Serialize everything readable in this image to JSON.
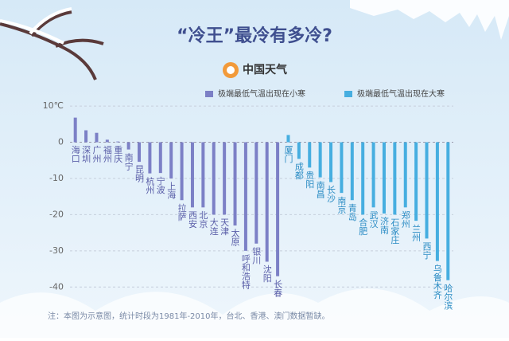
{
  "title": "“冷王”最冷有多冷?",
  "logo": "中国天气",
  "note": "注：本图为示意图，统计时段为1981年-2010年，台北、香港、澳门数据暂缺。",
  "chart_data": {
    "type": "bar",
    "categories": [
      "海口",
      "深圳",
      "广州",
      "福州",
      "重庆",
      "南宁",
      "昆明",
      "杭州",
      "宁波",
      "上海",
      "拉萨",
      "西安",
      "北京",
      "大连",
      "天津",
      "太原",
      "呼和浩特",
      "银川",
      "沈阳",
      "长春",
      "厦门",
      "成都",
      "贵阳",
      "南昌",
      "长沙",
      "南京",
      "青岛",
      "合肥",
      "武汉",
      "济南",
      "石家庄",
      "郑州",
      "兰州",
      "西宁",
      "乌鲁木齐",
      "哈尔滨"
    ],
    "series": [
      {
        "name": "极端最低气温出现在小寒",
        "color": "#7c80c6",
        "values": [
          6.8,
          3.3,
          2.6,
          0.7,
          0.2,
          -2,
          -5.4,
          -8.6,
          -8.5,
          -10,
          -16,
          -18,
          -18,
          -20,
          -20,
          -23,
          -30,
          -28,
          -33,
          -37,
          null,
          null,
          null,
          null,
          null,
          null,
          null,
          null,
          null,
          null,
          null,
          null,
          null,
          null,
          null,
          null
        ]
      },
      {
        "name": "极端最低气温出现在大寒",
        "color": "#46aee0",
        "values": [
          null,
          null,
          null,
          null,
          null,
          null,
          null,
          null,
          null,
          null,
          null,
          null,
          null,
          null,
          null,
          null,
          null,
          null,
          null,
          null,
          2,
          -4.6,
          -7,
          -9.7,
          -11,
          -14,
          -16,
          -20,
          -18,
          -19.7,
          -20,
          -18,
          -21.7,
          -26.6,
          -32.8,
          -38.1
        ]
      }
    ],
    "ylim": [
      -45,
      12
    ],
    "yticks": [
      {
        "value": 10,
        "label": "10℃"
      },
      0,
      -10,
      -20,
      -30,
      -40
    ],
    "grid": true
  }
}
